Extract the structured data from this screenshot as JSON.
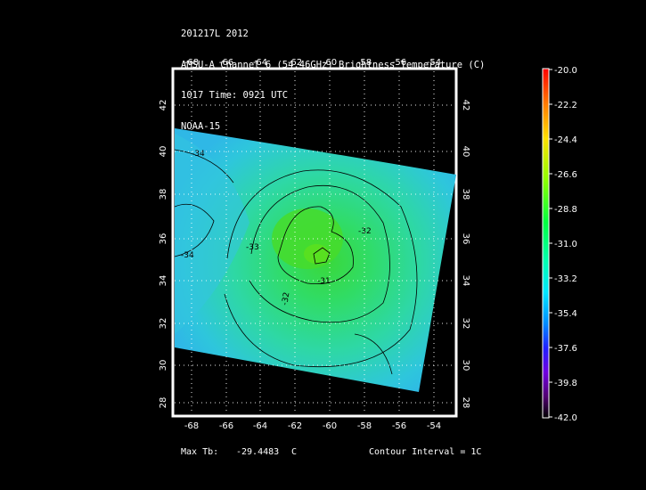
{
  "header": {
    "line1": "201217L 2012",
    "line2": "AMSU-A Channel 6 (54.46GHz) Brightness Temperature (C)",
    "line3": "1017 Time: 0921 UTC",
    "line4": "NOAA-15"
  },
  "map": {
    "lon_ticks": [
      "-68",
      "-66",
      "-64",
      "-62",
      "-60",
      "-58",
      "-56",
      "-54"
    ],
    "lat_ticks": [
      "42",
      "40",
      "38",
      "36",
      "34",
      "32",
      "30",
      "28"
    ],
    "contour_labels": [
      "-34",
      "-34",
      "-33",
      "-32",
      "-31",
      "-32"
    ],
    "grid": true
  },
  "colorbar": {
    "labels": [
      "-20.0",
      "-22.2",
      "-24.4",
      "-26.6",
      "-28.8",
      "-31.0",
      "-33.2",
      "-35.4",
      "-37.6",
      "-39.8",
      "-42.0"
    ],
    "range": [
      -42.0,
      -20.0
    ]
  },
  "footer": {
    "max_label": "Max Tb:",
    "max_value": "-29.4483",
    "max_unit": "C",
    "contour_interval": "Contour Interval = 1C"
  },
  "colors": {
    "warm_core": "#4cdc2a",
    "field_green": "#2edc72",
    "field_cyan": "#2ec8d8",
    "frame": "#ffffff"
  }
}
